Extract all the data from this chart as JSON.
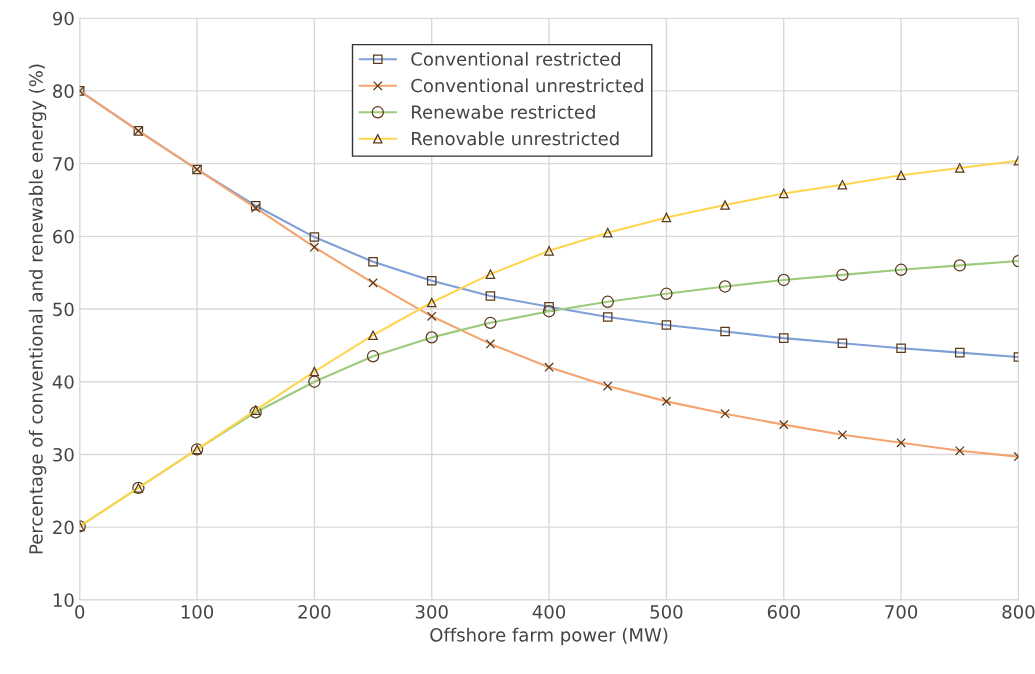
{
  "chart_data": {
    "type": "line",
    "xlabel": "Offshore farm power (MW)",
    "ylabel": "Percentage of conventional and renewable energy (%)",
    "x": [
      0,
      50,
      100,
      150,
      200,
      250,
      300,
      350,
      400,
      450,
      500,
      550,
      600,
      650,
      700,
      750,
      800
    ],
    "xlim": [
      0,
      800
    ],
    "xticks": [
      0,
      100,
      200,
      300,
      400,
      500,
      600,
      700,
      800
    ],
    "ylim": [
      10,
      90
    ],
    "yticks": [
      10,
      20,
      30,
      40,
      50,
      60,
      70,
      80,
      90
    ],
    "grid": true,
    "legend": "top",
    "line_style": "solid",
    "series": [
      {
        "name": "Conventional restricted",
        "color": "#7f9fd8",
        "marker": "square",
        "values": [
          80,
          74.5,
          69.2,
          64.2,
          59.9,
          56.5,
          53.9,
          51.8,
          50.3,
          48.9,
          47.8,
          46.9,
          46.0,
          45.3,
          44.6,
          44.0,
          43.4
        ]
      },
      {
        "name": "Conventional unrestricted",
        "color": "#f4a46e",
        "marker": "cross",
        "values": [
          80,
          74.5,
          69.2,
          63.9,
          58.5,
          53.6,
          49.0,
          45.2,
          42.0,
          39.4,
          37.3,
          35.6,
          34.1,
          32.7,
          31.6,
          30.5,
          29.7
        ]
      },
      {
        "name": "Renewabe restricted",
        "color": "#9dcb7e",
        "marker": "circle",
        "values": [
          20.1,
          25.4,
          30.7,
          35.8,
          40.0,
          43.5,
          46.1,
          48.1,
          49.7,
          51.0,
          52.1,
          53.1,
          54.0,
          54.7,
          55.4,
          56.0,
          56.6
        ]
      },
      {
        "name": "Renovable unrestricted",
        "color": "#ffd54f",
        "marker": "triangle",
        "values": [
          20.1,
          25.4,
          30.7,
          36.1,
          41.4,
          46.4,
          50.9,
          54.8,
          58.0,
          60.5,
          62.6,
          64.3,
          65.9,
          67.1,
          68.4,
          69.4,
          70.4
        ]
      }
    ]
  }
}
